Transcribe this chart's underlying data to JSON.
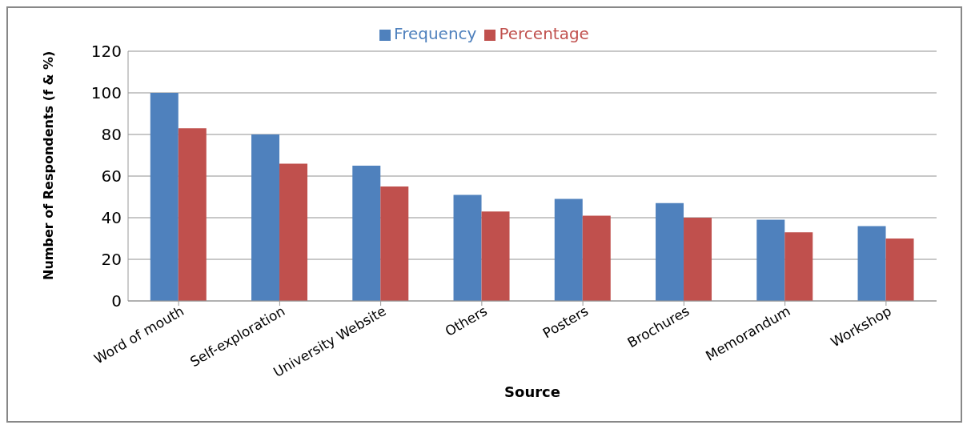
{
  "chart_data": {
    "type": "bar",
    "xlabel": "Source",
    "ylabel": "Number of Respondents (f & %)",
    "categories": [
      "Word of mouth",
      "Self-exploration",
      "University Website",
      "Others",
      "Posters",
      "Brochures",
      "Memorandum",
      "Workshop"
    ],
    "series": [
      {
        "name": "Frequency",
        "color": "#4f81bd",
        "values": [
          100,
          80,
          65,
          51,
          49,
          47,
          39,
          36
        ]
      },
      {
        "name": "Percentage",
        "color": "#c0504d",
        "values": [
          83,
          66,
          55,
          43,
          41,
          40,
          33,
          30
        ]
      }
    ],
    "ylim": [
      0,
      120
    ],
    "yticks": [
      0,
      20,
      40,
      60,
      80,
      100,
      120
    ],
    "grid": "y",
    "legend": "top"
  }
}
